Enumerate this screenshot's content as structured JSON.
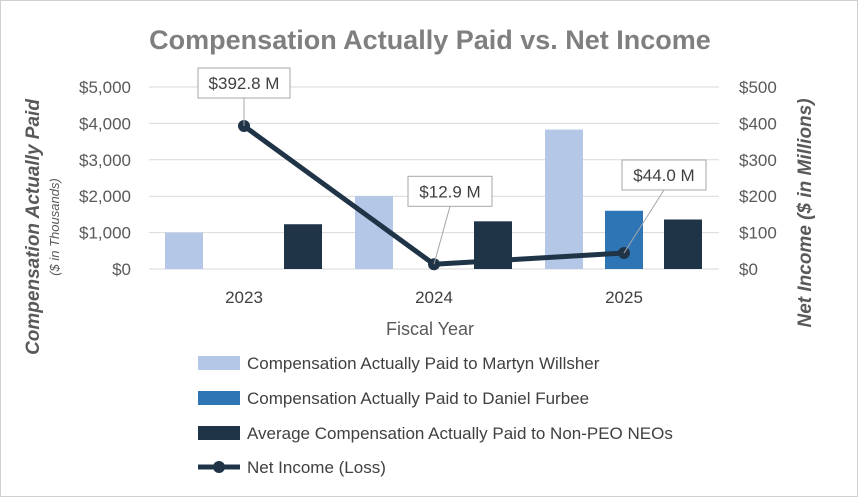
{
  "chart_data": {
    "type": "bar",
    "title": "Compensation Actually Paid vs. Net Income",
    "xlabel": "Fiscal Year",
    "ylabel_left": "Compensation Actually Paid",
    "ylabel_left_sub": "($ in Thousands)",
    "ylabel_right": "Net Income ($ in Millions)",
    "categories": [
      "2023",
      "2024",
      "2025"
    ],
    "ylim_left": [
      0,
      5000
    ],
    "ylim_right": [
      0,
      500
    ],
    "yticks_left": [
      "$0",
      "$1,000",
      "$2,000",
      "$3,000",
      "$4,000",
      "$5,000"
    ],
    "yticks_right": [
      "$0",
      "$100",
      "$200",
      "$300",
      "$400",
      "$500"
    ],
    "series": [
      {
        "name": "Compensation Actually Paid to Martyn Willsher",
        "type": "bar",
        "axis": "left",
        "color": "#b4c7e7",
        "values": [
          1000,
          2000,
          3830
        ]
      },
      {
        "name": "Compensation Actually Paid to Daniel Furbee",
        "type": "bar",
        "axis": "left",
        "color": "#2e75b6",
        "values": [
          null,
          null,
          1600
        ]
      },
      {
        "name": "Average Compensation Actually Paid to Non-PEO NEOs",
        "type": "bar",
        "axis": "left",
        "color": "#203448",
        "values": [
          1230,
          1310,
          1360
        ]
      },
      {
        "name": "Net Income (Loss)",
        "type": "line",
        "axis": "right",
        "color": "#203448",
        "values": [
          392.8,
          12.9,
          44.0
        ]
      }
    ],
    "annotations": [
      "$392.8 M",
      "$12.9 M",
      "$44.0 M"
    ],
    "legend_position": "bottom"
  }
}
